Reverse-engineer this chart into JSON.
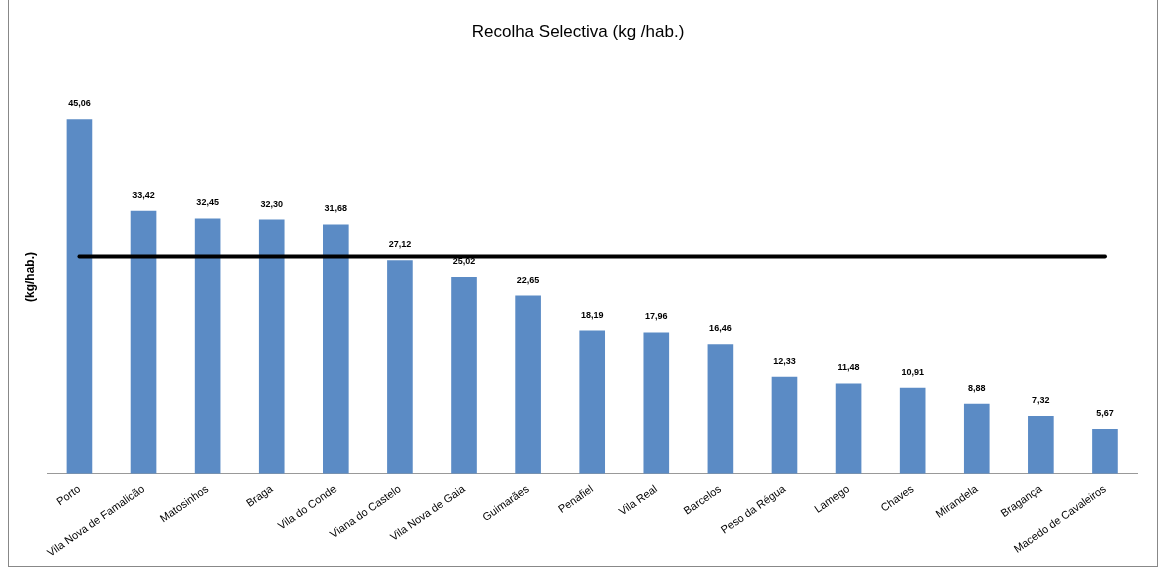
{
  "chart_data": {
    "type": "bar",
    "title": "Recolha Selectiva (kg /hab.)",
    "ylabel": "(kg/hab.)",
    "categories": [
      "Porto",
      "Vila Nova de Famalicão",
      "Matosinhos",
      "Braga",
      "Vila do Conde",
      "Viana do Castelo",
      "Vila Nova de Gaia",
      "Guimarães",
      "Penafiel",
      "Vila Real",
      "Barcelos",
      "Peso da Régua",
      "Lamego",
      "Chaves",
      "Mirandela",
      "Bragança",
      "Macedo de Cavaleiros"
    ],
    "values": [
      45.06,
      33.42,
      32.45,
      32.3,
      31.68,
      27.12,
      25.02,
      22.65,
      18.19,
      17.96,
      16.46,
      12.33,
      11.48,
      10.91,
      8.88,
      7.32,
      5.67
    ],
    "value_labels": [
      "45,06",
      "33,42",
      "32,45",
      "32,30",
      "31,68",
      "27,12",
      "25,02",
      "22,65",
      "18,19",
      "17,96",
      "16,46",
      "12,33",
      "11,48",
      "10,91",
      "8,88",
      "7,32",
      "5,67"
    ],
    "color": "#5b8bc5",
    "tick_labels": "x",
    "ref_lines": [
      {
        "axis": "y",
        "value": 27.6,
        "color": "#000000"
      }
    ],
    "grid": false,
    "legend": false
  }
}
